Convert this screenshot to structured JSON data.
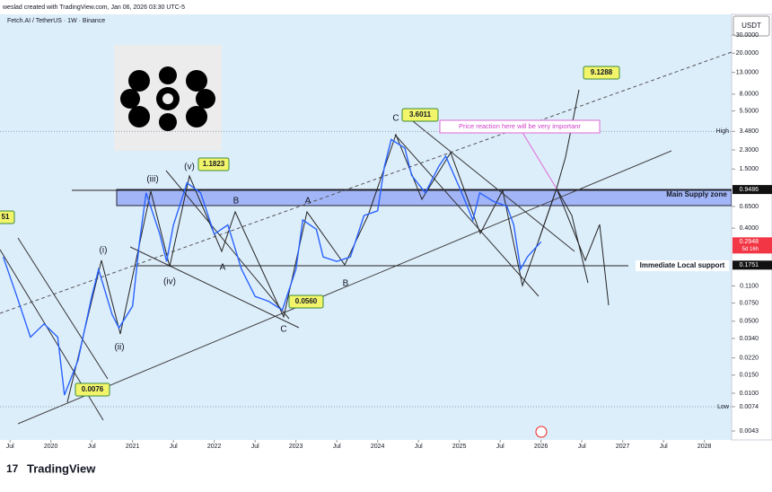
{
  "header": {
    "credit": "weslad created with TradingView.com, Jan 06, 2026 03:30 UTC-5",
    "symbol": "Fetch.AI / TetherUS · 1W · Binance"
  },
  "chart_data": {
    "type": "line",
    "color": "#2962ff",
    "log_scale": true,
    "currency": "USDT",
    "x": [
      "2019-06",
      "2019-08",
      "2019-10",
      "2019-12",
      "2020-02",
      "2020-03",
      "2020-05",
      "2020-07",
      "2020-08",
      "2020-10",
      "2020-11",
      "2021-01",
      "2021-02",
      "2021-03",
      "2021-05",
      "2021-06",
      "2021-07",
      "2021-09",
      "2021-11",
      "2022-01",
      "2022-03",
      "2022-05",
      "2022-07",
      "2022-09",
      "2022-11",
      "2023-01",
      "2023-02",
      "2023-04",
      "2023-05",
      "2023-07",
      "2023-09",
      "2023-11",
      "2024-01",
      "2024-02",
      "2024-03",
      "2024-05",
      "2024-06",
      "2024-08",
      "2024-10",
      "2024-11",
      "2025-01",
      "2025-03",
      "2025-04",
      "2025-06",
      "2025-08",
      "2025-09",
      "2025-10",
      "2025-11",
      "2026-01"
    ],
    "values": [
      0.21,
      0.087,
      0.035,
      0.047,
      0.035,
      0.0096,
      0.021,
      0.087,
      0.159,
      0.058,
      0.043,
      0.07,
      0.29,
      0.88,
      0.35,
      0.19,
      0.43,
      1.1,
      0.88,
      0.35,
      0.43,
      0.16,
      0.087,
      0.078,
      0.064,
      0.16,
      0.48,
      0.39,
      0.21,
      0.19,
      0.21,
      0.53,
      0.59,
      1.6,
      2.9,
      2.4,
      1.3,
      0.88,
      1.6,
      2.0,
      1.0,
      0.48,
      0.88,
      0.73,
      0.65,
      0.43,
      0.16,
      0.21,
      0.2948
    ],
    "xlim": [
      "2019-05",
      "2028-05"
    ],
    "xticks": [
      {
        "value": "2019-07",
        "label": "Jul"
      },
      {
        "value": "2020-01",
        "label": "2020"
      },
      {
        "value": "2020-07",
        "label": "Jul"
      },
      {
        "value": "2021-01",
        "label": "2021"
      },
      {
        "value": "2021-07",
        "label": "Jul"
      },
      {
        "value": "2022-01",
        "label": "2022"
      },
      {
        "value": "2022-07",
        "label": "Jul"
      },
      {
        "value": "2023-01",
        "label": "2023"
      },
      {
        "value": "2023-07",
        "label": "Jul"
      },
      {
        "value": "2024-01",
        "label": "2024"
      },
      {
        "value": "2024-07",
        "label": "Jul"
      },
      {
        "value": "2025-01",
        "label": "2025"
      },
      {
        "value": "2025-07",
        "label": "Jul"
      },
      {
        "value": "2026-01",
        "label": "2026"
      },
      {
        "value": "2026-07",
        "label": "Jul"
      },
      {
        "value": "2027-01",
        "label": "2027"
      },
      {
        "value": "2027-07",
        "label": "Jul"
      },
      {
        "value": "2028-01",
        "label": "2028"
      }
    ],
    "ylim": [
      0.0043,
      30
    ],
    "yticks": [
      {
        "value": 30,
        "label": "30.0000"
      },
      {
        "value": 20,
        "label": "20.0000"
      },
      {
        "value": 13,
        "label": "13.0000"
      },
      {
        "value": 8,
        "label": "8.0000"
      },
      {
        "value": 5.5,
        "label": "5.5000"
      },
      {
        "value": 3.48,
        "label": "3.4800"
      },
      {
        "value": 2.3,
        "label": "2.3000"
      },
      {
        "value": 1.5,
        "label": "1.5000"
      },
      {
        "value": 0.65,
        "label": "0.6500"
      },
      {
        "value": 0.4,
        "label": "0.4000"
      },
      {
        "value": 0.11,
        "label": "0.1100"
      },
      {
        "value": 0.075,
        "label": "0.0750"
      },
      {
        "value": 0.05,
        "label": "0.0500"
      },
      {
        "value": 0.034,
        "label": "0.0340"
      },
      {
        "value": 0.022,
        "label": "0.0220"
      },
      {
        "value": 0.015,
        "label": "0.0150"
      },
      {
        "value": 0.01,
        "label": "0.0100"
      },
      {
        "value": 0.0074,
        "label": "0.0074"
      },
      {
        "value": 0.0043,
        "label": "0.0043"
      }
    ],
    "high_label": "High",
    "low_label": "Low",
    "price_labels": [
      {
        "value": 0.9486,
        "label": "0.9486"
      },
      {
        "value": 0.2948,
        "label": "0.2948",
        "note": "5d 16h"
      },
      {
        "value": 0.1751,
        "label": "0.1751"
      }
    ],
    "wave_labels": [
      "(i)",
      "(ii)",
      "(iii)",
      "(iv)",
      "(v)",
      "B",
      "A",
      "C",
      "A",
      "B",
      "C"
    ],
    "callouts": [
      "1.1823",
      "0.0560",
      "0.0076",
      "3.6011",
      "9.1288",
      "51"
    ],
    "notes": [
      "Main Supply zone",
      "Immediate Local support",
      "Price reaction here will be very importanr"
    ]
  },
  "branding": "TradingView"
}
